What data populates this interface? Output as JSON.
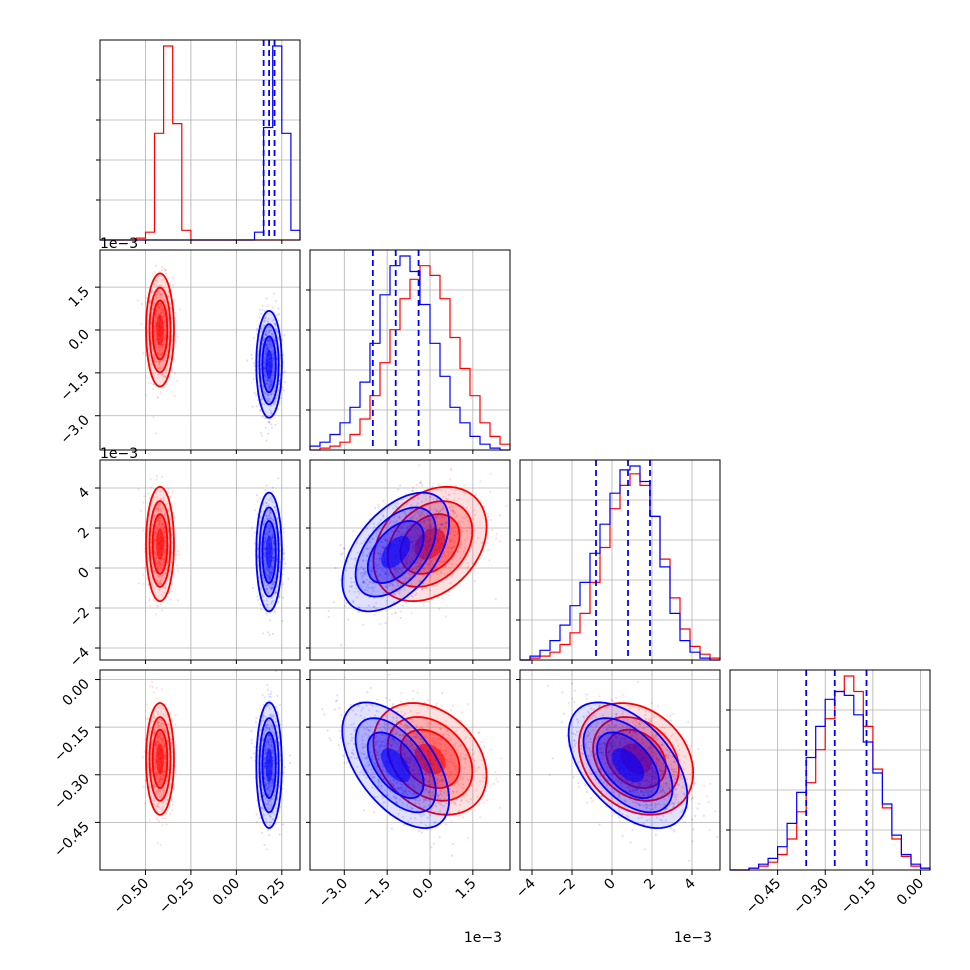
{
  "colors": {
    "series_a": "#ff0000",
    "series_b": "#0000ff",
    "quantile_line": "#0000ff",
    "grid": "#b0b0b0",
    "frame": "#000000"
  },
  "chart_data": {
    "type": "corner",
    "grid": true,
    "series_colors": [
      "#ff0000",
      "#0000ff"
    ],
    "parameters": [
      {
        "index": 0,
        "range": [
          -0.75,
          0.35
        ],
        "scale": 1,
        "ticks": [
          -0.5,
          -0.25,
          0.0,
          0.25
        ],
        "tick_labels": [
          "−0.50",
          "−0.25",
          "0.00",
          "0.25"
        ],
        "offset_label": ""
      },
      {
        "index": 1,
        "range": [
          -4.2,
          2.8
        ],
        "scale": 0.001,
        "ticks": [
          -3.0,
          -1.5,
          0.0,
          1.5
        ],
        "tick_labels": [
          "−3.0",
          "−1.5",
          "0.0",
          "1.5"
        ],
        "offset_label": "1e−3"
      },
      {
        "index": 2,
        "range": [
          -4.6,
          5.4
        ],
        "scale": 0.001,
        "ticks": [
          -4,
          -2,
          0,
          2,
          4
        ],
        "tick_labels": [
          "−4",
          "−2",
          "0",
          "2",
          "4"
        ],
        "offset_label": "1e−3"
      },
      {
        "index": 3,
        "range": [
          -0.6,
          0.03
        ],
        "scale": 1,
        "ticks": [
          -0.45,
          -0.3,
          -0.15,
          0.0
        ],
        "tick_labels": [
          "−0.45",
          "−0.30",
          "−0.15",
          "0.00"
        ],
        "offset_label": ""
      }
    ],
    "series": [
      {
        "color": "#ff0000",
        "means": [
          -0.42,
          0.0,
          1.2,
          -0.25
        ],
        "stds": [
          0.035,
          0.9,
          1.3,
          0.08
        ],
        "correlations": [
          [
            1,
            0,
            0,
            0
          ],
          [
            0,
            1,
            0.3,
            -0.3
          ],
          [
            0,
            0.3,
            1,
            -0.25
          ],
          [
            0,
            -0.3,
            -0.25,
            1
          ]
        ]
      },
      {
        "color": "#0000ff",
        "means": [
          0.18,
          -1.2,
          0.8,
          -0.27
        ],
        "stds": [
          0.032,
          0.85,
          1.35,
          0.09
        ],
        "correlations": [
          [
            1,
            0,
            0,
            0
          ],
          [
            0,
            1,
            0.5,
            -0.55
          ],
          [
            0,
            0.5,
            1,
            -0.5
          ],
          [
            0,
            -0.55,
            -0.5,
            1
          ]
        ]
      }
    ],
    "quantile_lines_blue": [
      [
        0.15,
        0.18,
        0.21
      ],
      [
        -2.0,
        -1.2,
        -0.4
      ],
      [
        -0.8,
        0.8,
        1.9
      ],
      [
        -0.36,
        -0.27,
        -0.17
      ]
    ],
    "histograms": [
      {
        "param": 0,
        "bin_edges": [
          -0.75,
          -0.7,
          -0.65,
          -0.6,
          -0.55,
          -0.5,
          -0.45,
          -0.4,
          -0.35,
          -0.3,
          -0.25,
          -0.2,
          -0.15,
          -0.1,
          -0.05,
          0.0,
          0.05,
          0.1,
          0.15,
          0.2,
          0.25,
          0.3,
          0.35
        ],
        "red": [
          0,
          0,
          0,
          0,
          1,
          4,
          55,
          100,
          60,
          5,
          0,
          0,
          0,
          0,
          0,
          0,
          0,
          0,
          0,
          0,
          0,
          0
        ],
        "blue": [
          0,
          0,
          0,
          0,
          0,
          0,
          0,
          0,
          0,
          0,
          0,
          0,
          0,
          0,
          0,
          0,
          0,
          4,
          58,
          100,
          55,
          5
        ]
      },
      {
        "param": 1,
        "bin_edges": [
          -4.2,
          -3.85,
          -3.5,
          -3.15,
          -2.8,
          -2.45,
          -2.1,
          -1.75,
          -1.4,
          -1.05,
          -0.7,
          -0.35,
          0.0,
          0.35,
          0.7,
          1.05,
          1.4,
          1.75,
          2.1,
          2.45,
          2.8
        ],
        "red": [
          0,
          1,
          2,
          4,
          8,
          16,
          28,
          45,
          62,
          78,
          88,
          95,
          90,
          78,
          58,
          42,
          28,
          14,
          7,
          3
        ],
        "blue": [
          2,
          4,
          8,
          14,
          22,
          35,
          55,
          80,
          95,
          100,
          92,
          75,
          55,
          38,
          22,
          14,
          7,
          3,
          1,
          0
        ]
      },
      {
        "param": 2,
        "bin_edges": [
          -4.6,
          -4.1,
          -3.6,
          -3.1,
          -2.6,
          -2.1,
          -1.6,
          -1.1,
          -0.6,
          -0.1,
          0.4,
          0.9,
          1.4,
          1.9,
          2.4,
          2.9,
          3.4,
          3.9,
          4.4,
          4.9,
          5.4
        ],
        "red": [
          0,
          1,
          2,
          4,
          8,
          14,
          24,
          40,
          58,
          78,
          90,
          96,
          90,
          74,
          52,
          32,
          16,
          7,
          3,
          1
        ],
        "blue": [
          0,
          2,
          5,
          10,
          18,
          28,
          40,
          55,
          70,
          86,
          98,
          100,
          92,
          74,
          48,
          24,
          10,
          4,
          1,
          0
        ]
      },
      {
        "param": 3,
        "bin_edges": [
          -0.6,
          -0.57,
          -0.54,
          -0.51,
          -0.48,
          -0.45,
          -0.42,
          -0.39,
          -0.36,
          -0.33,
          -0.3,
          -0.27,
          -0.24,
          -0.21,
          -0.18,
          -0.15,
          -0.12,
          -0.09,
          -0.06,
          -0.03,
          0.0,
          0.03
        ],
        "red": [
          0,
          0,
          1,
          2,
          4,
          8,
          16,
          30,
          45,
          62,
          78,
          92,
          100,
          92,
          74,
          52,
          32,
          16,
          7,
          2,
          1
        ],
        "blue": [
          0,
          0,
          1,
          3,
          6,
          12,
          24,
          40,
          58,
          74,
          88,
          92,
          90,
          80,
          66,
          50,
          34,
          18,
          8,
          3,
          1
        ]
      }
    ]
  }
}
